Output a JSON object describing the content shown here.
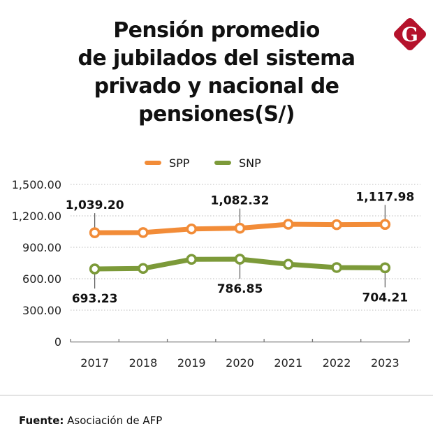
{
  "title_lines": [
    "Pensión promedio",
    "de jubilados del sistema",
    "privado y nacional de",
    "pensiones(S/)"
  ],
  "logo": {
    "letter": "G",
    "icon": "gestion-logo-icon",
    "color": "#b5122b"
  },
  "footer": {
    "label": "Fuente:",
    "source": "Asociación de AFP"
  },
  "chart_data": {
    "type": "line",
    "title": "Pensión promedio de jubilados del sistema privado y nacional de pensiones(S/)",
    "xlabel": "",
    "ylabel": "",
    "x": [
      "2017",
      "2018",
      "2019",
      "2020",
      "2021",
      "2022",
      "2023"
    ],
    "ylim": [
      0,
      1500
    ],
    "yticks": [
      0,
      300,
      600,
      900,
      1200,
      1500
    ],
    "ytick_labels": [
      "0",
      "300.00",
      "600.00",
      "900.00",
      "1,200.00",
      "1,500.00"
    ],
    "grid": "horizontal-dotted",
    "legend": "top-center",
    "series": [
      {
        "name": "SPP",
        "color": "#f28c38",
        "values": [
          1039.2,
          1041,
          1075,
          1082.32,
          1120,
          1116,
          1117.98
        ],
        "annotations": [
          {
            "index": 0,
            "text": "1,039.20",
            "position": "above"
          },
          {
            "index": 3,
            "text": "1,082.32",
            "position": "above"
          },
          {
            "index": 6,
            "text": "1,117.98",
            "position": "above"
          }
        ]
      },
      {
        "name": "SNP",
        "color": "#7c9a39",
        "values": [
          693.23,
          698,
          785,
          786.85,
          738,
          707,
          704.21
        ],
        "annotations": [
          {
            "index": 0,
            "text": "693.23",
            "position": "below"
          },
          {
            "index": 3,
            "text": "786.85",
            "position": "below"
          },
          {
            "index": 6,
            "text": "704.21",
            "position": "below"
          }
        ]
      }
    ]
  }
}
